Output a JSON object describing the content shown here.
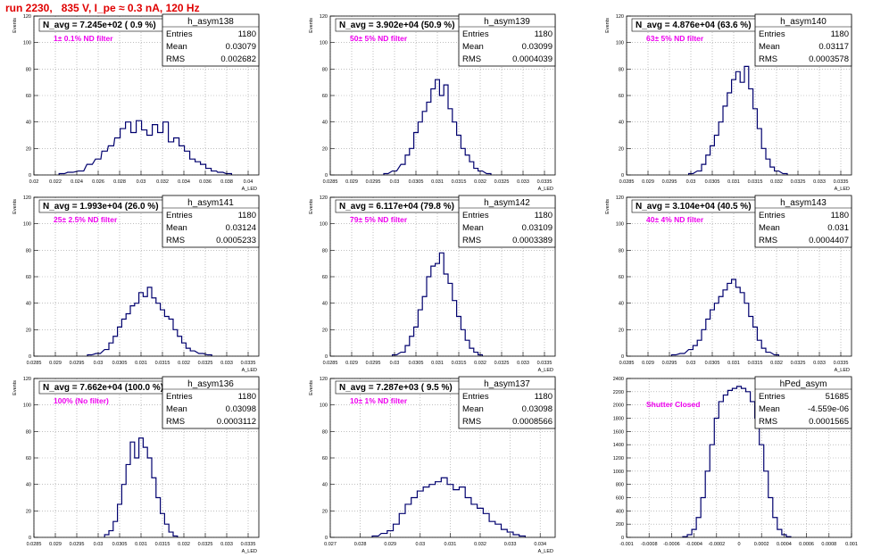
{
  "page_title": "run 2230,   835 V, I_pe ≈ 0.3 nA, 120 Hz",
  "colors": {
    "title": "#e00000",
    "hist": "#00006e",
    "filter_label": "#ee00ee",
    "grid": "#999999"
  },
  "chart_data": [
    {
      "type": "bar",
      "name": "h_asym138",
      "stats": {
        "entries": "1180",
        "mean": "0.03079",
        "rms": "0.002682"
      },
      "navg": "N_avg = 7.245e+02 ( 0.9 %)",
      "filter": "1± 0.1% ND filter",
      "ylabel": "Events",
      "xlabel": "A_LED",
      "xlim": [
        0.02,
        0.041
      ],
      "ylim": [
        0,
        120
      ],
      "xticks": [
        "0.02",
        "0.022",
        "0.024",
        "0.026",
        "0.028",
        "0.03",
        "0.032",
        "0.034",
        "0.036",
        "0.038",
        "0.04"
      ],
      "xtick_values": [
        0.02,
        0.022,
        0.024,
        0.026,
        0.028,
        0.03,
        0.032,
        0.034,
        0.036,
        0.038,
        0.04
      ],
      "yticks": [
        0,
        20,
        40,
        60,
        80,
        100,
        120
      ],
      "x": [
        0.0226,
        0.0234,
        0.0244,
        0.0252,
        0.026,
        0.0266,
        0.0272,
        0.0278,
        0.0283,
        0.0288,
        0.0293,
        0.0298,
        0.0303,
        0.0308,
        0.0313,
        0.0318,
        0.0323,
        0.0328,
        0.0333,
        0.0338,
        0.0343,
        0.0348,
        0.0353,
        0.0358,
        0.0363,
        0.0368,
        0.0374,
        0.0382
      ],
      "values": [
        1,
        2,
        3,
        8,
        12,
        18,
        22,
        28,
        35,
        40,
        32,
        41,
        34,
        30,
        38,
        32,
        40,
        25,
        28,
        22,
        18,
        12,
        10,
        8,
        5,
        3,
        2,
        1
      ],
      "bin_width": 0.0005
    },
    {
      "type": "bar",
      "name": "h_asym139",
      "stats": {
        "entries": "1180",
        "mean": "0.03099",
        "rms": "0.0004039"
      },
      "navg": "N_avg = 3.902e+04 (50.9 %)",
      "filter": "50± 5% ND filter",
      "ylabel": "Events",
      "xlabel": "A_LED",
      "xlim": [
        0.0285,
        0.03375
      ],
      "ylim": [
        0,
        120
      ],
      "xticks": [
        "0.0285",
        "0.029",
        "0.0295",
        "0.03",
        "0.0305",
        "0.031",
        "0.0315",
        "0.032",
        "0.0325",
        "0.033",
        "0.0335"
      ],
      "xtick_values": [
        0.0285,
        0.029,
        0.0295,
        0.03,
        0.0305,
        0.031,
        0.0315,
        0.032,
        0.0325,
        0.033,
        0.0335
      ],
      "yticks": [
        0,
        20,
        40,
        60,
        80,
        100,
        120
      ],
      "x": [
        0.0298,
        0.03,
        0.0302,
        0.0303,
        0.0304,
        0.0305,
        0.0306,
        0.0307,
        0.0308,
        0.0309,
        0.031,
        0.0311,
        0.0312,
        0.0313,
        0.0314,
        0.0315,
        0.0316,
        0.0317,
        0.0318,
        0.0319,
        0.032,
        0.0322
      ],
      "values": [
        1,
        3,
        8,
        15,
        20,
        32,
        40,
        48,
        55,
        65,
        72,
        60,
        68,
        50,
        40,
        30,
        20,
        15,
        10,
        5,
        3,
        1
      ],
      "bin_width": 0.0001
    },
    {
      "type": "bar",
      "name": "h_asym140",
      "stats": {
        "entries": "1180",
        "mean": "0.03117",
        "rms": "0.0003578"
      },
      "navg": "N_avg = 4.876e+04 (63.6 %)",
      "filter": "63± 5% ND filter",
      "ylabel": "Events",
      "xlabel": "A_LED",
      "xlim": [
        0.0285,
        0.03375
      ],
      "ylim": [
        0,
        120
      ],
      "xticks": [
        "0.0285",
        "0.029",
        "0.0295",
        "0.03",
        "0.0305",
        "0.031",
        "0.0315",
        "0.032",
        "0.0325",
        "0.033",
        "0.0335"
      ],
      "xtick_values": [
        0.0285,
        0.029,
        0.0295,
        0.03,
        0.0305,
        0.031,
        0.0315,
        0.032,
        0.0325,
        0.033,
        0.0335
      ],
      "yticks": [
        0,
        20,
        40,
        60,
        80,
        100,
        120
      ],
      "x": [
        0.03,
        0.0302,
        0.0303,
        0.0304,
        0.0305,
        0.0306,
        0.0307,
        0.0308,
        0.0309,
        0.031,
        0.0311,
        0.0312,
        0.0313,
        0.0314,
        0.0315,
        0.0316,
        0.0317,
        0.0318,
        0.0319,
        0.032,
        0.0322
      ],
      "values": [
        1,
        3,
        8,
        15,
        22,
        30,
        40,
        52,
        62,
        72,
        78,
        70,
        82,
        65,
        50,
        35,
        20,
        12,
        6,
        3,
        1
      ],
      "bin_width": 0.0001
    },
    {
      "type": "bar",
      "name": "h_asym141",
      "stats": {
        "entries": "1180",
        "mean": "0.03124",
        "rms": "0.0005233"
      },
      "navg": "N_avg = 1.993e+04 (26.0 %)",
      "filter": "25± 2.5% ND filter",
      "ylabel": "Events",
      "xlabel": "A_LED",
      "xlim": [
        0.0285,
        0.03375
      ],
      "ylim": [
        0,
        120
      ],
      "xticks": [
        "0.0285",
        "0.029",
        "0.0295",
        "0.03",
        "0.0305",
        "0.031",
        "0.0315",
        "0.032",
        "0.0325",
        "0.033",
        "0.0335"
      ],
      "xtick_values": [
        0.0285,
        0.029,
        0.0295,
        0.03,
        0.0305,
        0.031,
        0.0315,
        0.032,
        0.0325,
        0.033,
        0.0335
      ],
      "yticks": [
        0,
        20,
        40,
        60,
        80,
        100,
        120
      ],
      "x": [
        0.0298,
        0.03,
        0.0302,
        0.0303,
        0.0304,
        0.0305,
        0.0306,
        0.0307,
        0.0308,
        0.0309,
        0.031,
        0.0311,
        0.0312,
        0.0313,
        0.0314,
        0.0315,
        0.0316,
        0.0317,
        0.0318,
        0.0319,
        0.032,
        0.0321,
        0.0322,
        0.0324,
        0.0326
      ],
      "values": [
        1,
        2,
        5,
        10,
        15,
        22,
        28,
        32,
        38,
        40,
        48,
        45,
        52,
        44,
        40,
        35,
        30,
        28,
        20,
        15,
        10,
        6,
        4,
        2,
        1
      ],
      "bin_width": 0.0001
    },
    {
      "type": "bar",
      "name": "h_asym142",
      "stats": {
        "entries": "1180",
        "mean": "0.03109",
        "rms": "0.0003389"
      },
      "navg": "N_avg = 6.117e+04 (79.8 %)",
      "filter": "79± 5% ND filter",
      "ylabel": "Events",
      "xlabel": "A_LED",
      "xlim": [
        0.0285,
        0.03375
      ],
      "ylim": [
        0,
        120
      ],
      "xticks": [
        "0.0285",
        "0.029",
        "0.0295",
        "0.03",
        "0.0305",
        "0.031",
        "0.0315",
        "0.032",
        "0.0325",
        "0.033",
        "0.0335"
      ],
      "xtick_values": [
        0.0285,
        0.029,
        0.0295,
        0.03,
        0.0305,
        0.031,
        0.0315,
        0.032,
        0.0325,
        0.033,
        0.0335
      ],
      "yticks": [
        0,
        20,
        40,
        60,
        80,
        100,
        120
      ],
      "x": [
        0.03,
        0.0302,
        0.0303,
        0.0304,
        0.0305,
        0.0306,
        0.0307,
        0.0308,
        0.0309,
        0.031,
        0.0311,
        0.0312,
        0.0313,
        0.0314,
        0.0315,
        0.0316,
        0.0317,
        0.0318,
        0.0319,
        0.032
      ],
      "values": [
        1,
        3,
        8,
        15,
        22,
        35,
        45,
        60,
        68,
        70,
        78,
        62,
        55,
        42,
        30,
        20,
        12,
        6,
        3,
        1
      ],
      "bin_width": 0.0001
    },
    {
      "type": "bar",
      "name": "h_asym143",
      "stats": {
        "entries": "1180",
        "mean": "0.031",
        "rms": "0.0004407"
      },
      "navg": "N_avg = 3.104e+04 (40.5 %)",
      "filter": "40± 4% ND filter",
      "ylabel": "Events",
      "xlabel": "A_LED",
      "xlim": [
        0.0285,
        0.03375
      ],
      "ylim": [
        0,
        120
      ],
      "xticks": [
        "0.0285",
        "0.029",
        "0.0295",
        "0.03",
        "0.0305",
        "0.031",
        "0.0315",
        "0.032",
        "0.0325",
        "0.033",
        "0.0335"
      ],
      "xtick_values": [
        0.0285,
        0.029,
        0.0295,
        0.03,
        0.0305,
        0.031,
        0.0315,
        0.032,
        0.0325,
        0.033,
        0.0335
      ],
      "yticks": [
        0,
        20,
        40,
        60,
        80,
        100,
        120
      ],
      "x": [
        0.0296,
        0.0298,
        0.03,
        0.0301,
        0.0302,
        0.0303,
        0.0304,
        0.0305,
        0.0306,
        0.0307,
        0.0308,
        0.0309,
        0.031,
        0.0311,
        0.0312,
        0.0313,
        0.0314,
        0.0315,
        0.0316,
        0.0317,
        0.0318,
        0.032
      ],
      "values": [
        1,
        2,
        5,
        8,
        12,
        20,
        28,
        35,
        40,
        45,
        50,
        55,
        58,
        52,
        48,
        40,
        30,
        22,
        12,
        6,
        3,
        1
      ],
      "bin_width": 0.0001
    },
    {
      "type": "bar",
      "name": "h_asym136",
      "stats": {
        "entries": "1180",
        "mean": "0.03098",
        "rms": "0.0003112"
      },
      "navg": "N_avg = 7.662e+04 (100.0 %)",
      "filter": "100% (No filter)",
      "ylabel": "Events",
      "xlabel": "A_LED",
      "xlim": [
        0.0285,
        0.03375
      ],
      "ylim": [
        0,
        120
      ],
      "xticks": [
        "0.0285",
        "0.029",
        "0.0295",
        "0.03",
        "0.0305",
        "0.031",
        "0.0315",
        "0.032",
        "0.0325",
        "0.033",
        "0.0335"
      ],
      "xtick_values": [
        0.0285,
        0.029,
        0.0295,
        0.03,
        0.0305,
        0.031,
        0.0315,
        0.032,
        0.0325,
        0.033,
        0.0335
      ],
      "yticks": [
        0,
        20,
        40,
        60,
        80,
        100,
        120
      ],
      "x": [
        0.0302,
        0.0303,
        0.0304,
        0.0305,
        0.0306,
        0.0307,
        0.0308,
        0.0309,
        0.031,
        0.0311,
        0.0312,
        0.0313,
        0.0314,
        0.0315,
        0.0316,
        0.0317,
        0.0318
      ],
      "values": [
        2,
        5,
        12,
        25,
        40,
        55,
        72,
        60,
        75,
        68,
        60,
        45,
        30,
        18,
        10,
        4,
        1
      ],
      "bin_width": 0.0001
    },
    {
      "type": "bar",
      "name": "h_asym137",
      "stats": {
        "entries": "1180",
        "mean": "0.03098",
        "rms": "0.0008566"
      },
      "navg": "N_avg = 7.287e+03 ( 9.5 %)",
      "filter": "10± 1% ND filter",
      "ylabel": "Events",
      "xlabel": "A_LED",
      "xlim": [
        0.027,
        0.0345
      ],
      "ylim": [
        0,
        120
      ],
      "xticks": [
        "0.027",
        "0.028",
        "0.029",
        "0.03",
        "0.031",
        "0.032",
        "0.033",
        "0.034"
      ],
      "xtick_values": [
        0.027,
        0.028,
        0.029,
        0.03,
        0.031,
        0.032,
        0.033,
        0.034
      ],
      "yticks": [
        0,
        20,
        40,
        60,
        80,
        100,
        120
      ],
      "x": [
        0.0285,
        0.0288,
        0.029,
        0.0292,
        0.0294,
        0.0296,
        0.0298,
        0.03,
        0.0302,
        0.0304,
        0.0306,
        0.0308,
        0.031,
        0.0312,
        0.0314,
        0.0316,
        0.0318,
        0.032,
        0.0322,
        0.0324,
        0.0326,
        0.0328,
        0.033,
        0.0332,
        0.0334
      ],
      "values": [
        1,
        3,
        5,
        10,
        18,
        25,
        30,
        35,
        38,
        40,
        42,
        45,
        40,
        36,
        38,
        30,
        25,
        22,
        18,
        12,
        10,
        6,
        4,
        2,
        1
      ],
      "bin_width": 0.0002
    },
    {
      "type": "bar",
      "name": "hPed_asym",
      "stats": {
        "entries": "51685",
        "mean": "-4.559e-06",
        "rms": "0.0001565"
      },
      "navg": "",
      "filter": "Shutter Closed",
      "ylabel": "",
      "xlabel": "",
      "xlim": [
        -0.001,
        0.001
      ],
      "ylim": [
        0,
        2400
      ],
      "xticks": [
        "-0.001",
        "-0.0008",
        "-0.0006",
        "-0.0004",
        "-0.0002",
        "0",
        "0.0002",
        "0.0004",
        "0.0006",
        "0.0008",
        "0.001"
      ],
      "xtick_values": [
        -0.001,
        -0.0008,
        -0.0006,
        -0.0004,
        -0.0002,
        0,
        0.0002,
        0.0004,
        0.0006,
        0.0008,
        0.001
      ],
      "yticks": [
        0,
        200,
        400,
        600,
        800,
        1000,
        1200,
        1400,
        1600,
        1800,
        2000,
        2200,
        2400
      ],
      "x": [
        -0.00048,
        -0.00044,
        -0.0004,
        -0.00036,
        -0.00032,
        -0.00028,
        -0.00024,
        -0.0002,
        -0.00016,
        -0.00012,
        -8e-05,
        -4e-05,
        0,
        4e-05,
        8e-05,
        0.00012,
        0.00016,
        0.0002,
        0.00024,
        0.00028,
        0.00032,
        0.00036,
        0.0004,
        0.00044
      ],
      "values": [
        10,
        40,
        120,
        300,
        600,
        1000,
        1400,
        1800,
        2050,
        2150,
        2220,
        2250,
        2280,
        2250,
        2200,
        2050,
        1800,
        1400,
        1000,
        600,
        300,
        120,
        40,
        10
      ],
      "bin_width": 4e-05
    }
  ]
}
